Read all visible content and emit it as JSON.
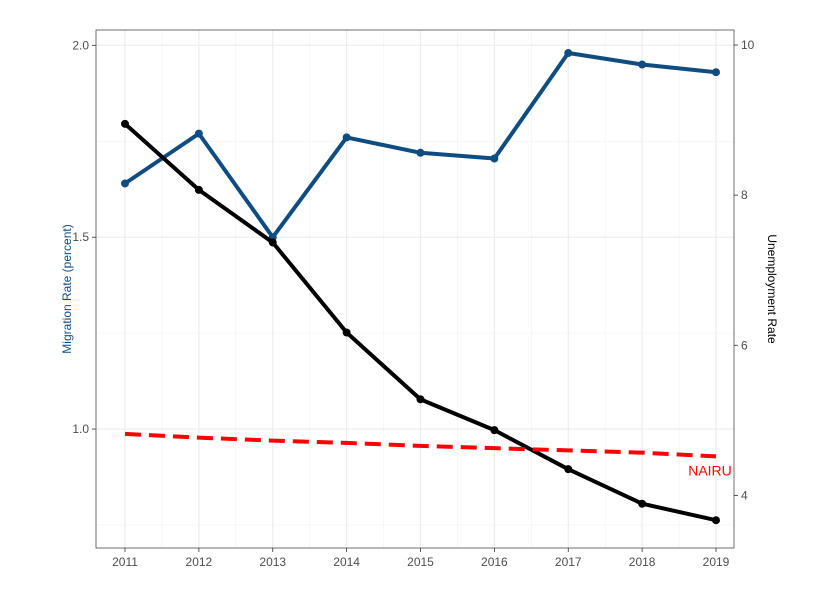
{
  "chart_data": {
    "type": "line",
    "x": [
      2011,
      2012,
      2013,
      2014,
      2015,
      2016,
      2017,
      2018,
      2019
    ],
    "x_ticks": [
      "2011",
      "2012",
      "2013",
      "2014",
      "2015",
      "2016",
      "2017",
      "2018",
      "2019"
    ],
    "y_left": {
      "label": "Migration Rate (percent)",
      "range": [
        0.69,
        2.04
      ],
      "ticks": [
        "1.0",
        "1.5",
        "2.0"
      ],
      "tick_values": [
        1.0,
        1.5,
        2.0
      ],
      "color": "#0f4c81"
    },
    "y_right": {
      "label": "Unemployment Rate",
      "range": [
        3.3,
        10.2
      ],
      "ticks": [
        "4",
        "6",
        "8",
        "10"
      ],
      "tick_values": [
        4,
        6,
        8,
        10
      ],
      "color": "#000000"
    },
    "series": [
      {
        "id": "migration",
        "axis": "left",
        "color": "#0f4c81",
        "style": "solid",
        "markers": true,
        "values": [
          1.64,
          1.77,
          1.5,
          1.76,
          1.72,
          1.705,
          1.98,
          1.95,
          1.93
        ]
      },
      {
        "id": "unemployment",
        "axis": "right",
        "color": "#000000",
        "style": "solid",
        "markers": true,
        "values": [
          8.95,
          8.07,
          7.37,
          6.17,
          5.28,
          4.87,
          4.35,
          3.89,
          3.67
        ]
      },
      {
        "id": "nairu",
        "name": "NAIRU",
        "axis": "right",
        "color": "#ff0000",
        "style": "dashed",
        "markers": false,
        "values": [
          4.82,
          4.77,
          4.73,
          4.7,
          4.66,
          4.63,
          4.6,
          4.57,
          4.52
        ]
      }
    ],
    "annotations": [
      {
        "text": "NAIRU",
        "color": "#ff0000",
        "series": "nairu"
      }
    ],
    "grid": true,
    "legend": "none"
  }
}
